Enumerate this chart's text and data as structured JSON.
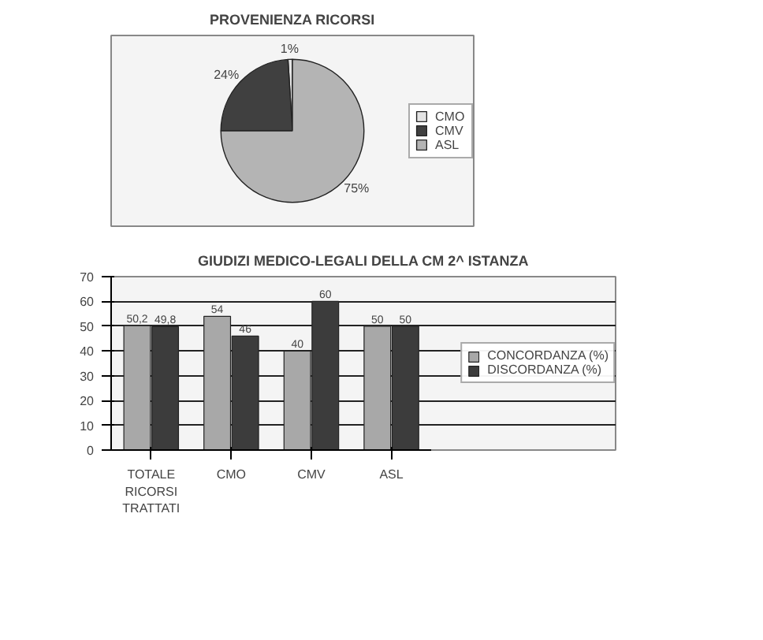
{
  "chart_data": [
    {
      "type": "pie",
      "title": "PROVENIENZA RICORSI",
      "categories": [
        "CMO",
        "CMV",
        "ASL"
      ],
      "values": [
        1,
        24,
        75
      ],
      "colors": [
        "#e4e4e4",
        "#404040",
        "#b4b4b4"
      ],
      "value_labels": [
        "1%",
        "24%",
        "75%"
      ],
      "legend": "right"
    },
    {
      "type": "bar",
      "title": "GIUDIZI MEDICO-LEGALI DELLA CM 2^ ISTANZA",
      "categories": [
        "TOTALE RICORSI TRATTATI",
        "CMO",
        "CMV",
        "ASL"
      ],
      "series": [
        {
          "name": "CONCORDANZA (%)",
          "color": "#a8a8a8",
          "values": [
            50.2,
            54,
            40,
            50
          ],
          "value_labels": [
            "50,2",
            "54",
            "40",
            "50"
          ]
        },
        {
          "name": "DISCORDANZA (%)",
          "color": "#3c3c3c",
          "values": [
            49.8,
            46,
            60,
            50
          ],
          "value_labels": [
            "49,8",
            "46",
            "60",
            "50"
          ]
        }
      ],
      "ylim": [
        0,
        70
      ],
      "yticks": [
        0,
        10,
        20,
        30,
        40,
        50,
        60,
        70
      ],
      "grid": "y",
      "legend": "right"
    }
  ]
}
